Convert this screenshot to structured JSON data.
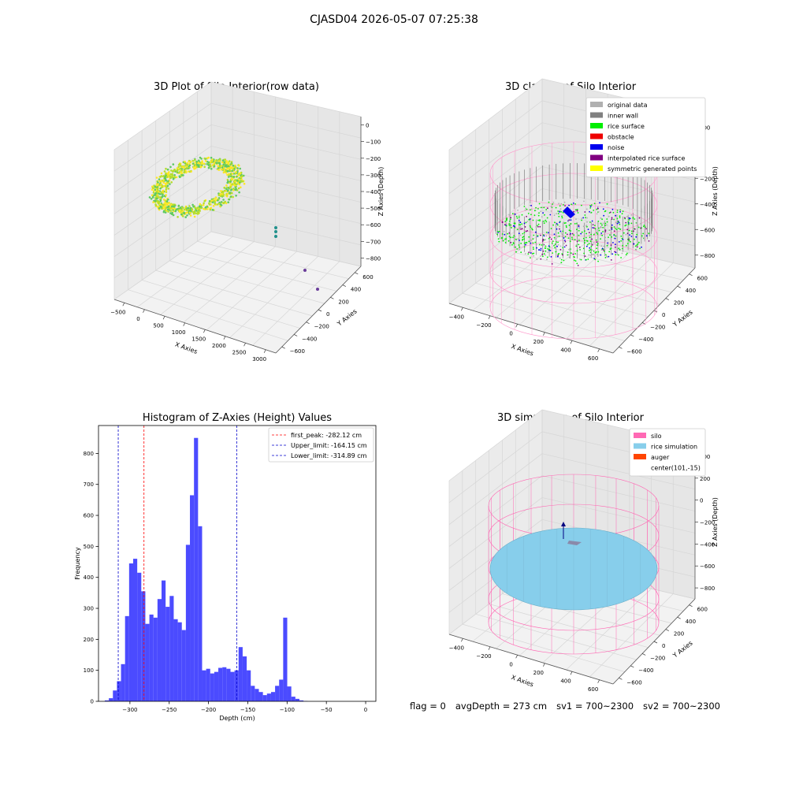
{
  "figure": {
    "suptitle": "CJASD04 2026-05-07 07:25:38",
    "status": {
      "flag": "flag = 0",
      "avg_depth": "avgDepth = 273 cm",
      "sv1": "sv1 = 700~2300",
      "sv2": "sv2 = 700~2300"
    }
  },
  "chart_data": [
    {
      "type": "scatter",
      "title": "3D Plot of Silo Interior(row data)",
      "xlabel": "X Axies",
      "ylabel": "Y Axies",
      "zlabel": "Z Axies (Depth)",
      "x_ticks": [
        "−500",
        "0",
        "500",
        "1000",
        "1500",
        "2000",
        "2500",
        "3000"
      ],
      "y_ticks": [
        "−600",
        "−400",
        "−200",
        "0",
        "200",
        "400",
        "600"
      ],
      "z_ticks": [
        "0",
        "−100",
        "−200",
        "−300",
        "−400",
        "−500",
        "−600",
        "−700",
        "−800"
      ],
      "xlim": [
        -600,
        3100
      ],
      "ylim": [
        -650,
        650
      ],
      "zlim": [
        -850,
        50
      ],
      "colormap": "viridis",
      "outliers": [
        {
          "x": 1900,
          "y": 250,
          "z": -470
        },
        {
          "x": 1900,
          "y": 250,
          "z": -510
        },
        {
          "x": 1900,
          "y": 250,
          "z": -540
        },
        {
          "x": 2700,
          "y": 0,
          "z": -780
        },
        {
          "x": 3000,
          "y": -100,
          "z": -820
        }
      ]
    },
    {
      "type": "scatter",
      "title": "3D classify of Silo Interior",
      "xlabel": "X Axies",
      "ylabel": "Y Axies",
      "zlabel": "Z Axies (Depth)",
      "x_ticks": [
        "−400",
        "−200",
        "0",
        "200",
        "400",
        "600"
      ],
      "y_ticks": [
        "−600",
        "−400",
        "−200",
        "0",
        "200",
        "400",
        "600"
      ],
      "z_ticks": [
        "200",
        "0",
        "−200",
        "−400",
        "−600",
        "−800"
      ],
      "legend_position": "top-right",
      "legend": [
        {
          "label": "original data",
          "color": "#b0b0b0"
        },
        {
          "label": "inner wall",
          "color": "#808080"
        },
        {
          "label": "rice surface",
          "color": "#00ee00"
        },
        {
          "label": "obstacle",
          "color": "#ee0000"
        },
        {
          "label": "noise",
          "color": "#0000ee"
        },
        {
          "label": "interpolated rice surface",
          "color": "#800080"
        },
        {
          "label": "symmetric generated points",
          "color": "#ffff00"
        }
      ],
      "wireframe_color": "#ff99cc"
    },
    {
      "type": "bar",
      "title": "Histogram of Z-Axies (Height) Values",
      "xlabel": "Depth (cm)",
      "ylabel": "Frequency",
      "xlim": [
        -340,
        13
      ],
      "ylim": [
        0,
        890
      ],
      "x_ticks": [
        -300,
        -250,
        -200,
        -150,
        -100,
        -50,
        0
      ],
      "y_ticks": [
        0,
        100,
        200,
        300,
        400,
        500,
        600,
        700,
        800
      ],
      "bar_color": "#4b4bff",
      "bin_width": 5.16,
      "bins_start": [
        -332.0,
        -326.84,
        -321.68,
        -316.52,
        -311.36,
        -306.2,
        -301.04,
        -295.88,
        -290.72,
        -285.56,
        -280.4,
        -275.24,
        -270.08,
        -264.92,
        -259.76,
        -254.6,
        -249.44,
        -244.28,
        -239.12,
        -233.96,
        -228.8,
        -223.64,
        -218.48,
        -213.32,
        -208.16,
        -203.0,
        -197.84,
        -192.68,
        -187.52,
        -182.36,
        -177.2,
        -172.04,
        -166.88,
        -161.72,
        -156.56,
        -151.4,
        -146.24,
        -141.08,
        -135.92,
        -130.76,
        -125.6,
        -120.44,
        -115.28,
        -110.12,
        -104.96,
        -99.8,
        -94.64,
        -89.48,
        -84.32,
        -79.16,
        -74.0,
        -68.84,
        -63.68,
        -58.52,
        -53.36,
        -48.2,
        -43.04,
        -37.88,
        -32.72,
        -27.56,
        -22.4,
        -17.24,
        -12.08,
        -6.92,
        -1.76
      ],
      "values": [
        3,
        10,
        35,
        65,
        120,
        275,
        445,
        460,
        415,
        355,
        250,
        280,
        270,
        330,
        390,
        305,
        340,
        265,
        255,
        230,
        505,
        665,
        850,
        565,
        100,
        105,
        90,
        95,
        108,
        110,
        105,
        95,
        100,
        175,
        145,
        100,
        50,
        40,
        30,
        20,
        25,
        30,
        50,
        70,
        270,
        48,
        15,
        8,
        3,
        1,
        0,
        0,
        0,
        0,
        0,
        0,
        0,
        0,
        0,
        0,
        0,
        0,
        0,
        0,
        0
      ],
      "vlines": [
        {
          "label": "first_peak: -282.12 cm",
          "x": -282.12,
          "color": "#ff0000"
        },
        {
          "label": "Upper_limit: -164.15 cm",
          "x": -164.15,
          "color": "#0000cc"
        },
        {
          "label": "Lower_limit: -314.89 cm",
          "x": -314.89,
          "color": "#0000cc"
        }
      ],
      "legend_position": "top-right"
    },
    {
      "type": "scatter",
      "title": "3D simulation of Silo Interior",
      "xlabel": "X Axies",
      "ylabel": "Y Axies",
      "zlabel": "Z Axies (Depth)",
      "x_ticks": [
        "−400",
        "−200",
        "0",
        "200",
        "400",
        "600"
      ],
      "y_ticks": [
        "−600",
        "−400",
        "−200",
        "0",
        "200",
        "400",
        "600"
      ],
      "z_ticks": [
        "400",
        "200",
        "0",
        "−200",
        "−400",
        "−600",
        "−800"
      ],
      "legend_position": "top-right",
      "legend": [
        {
          "label": "silo",
          "color": "#ff69b4"
        },
        {
          "label": "rice simulation",
          "color": "#87ceeb"
        },
        {
          "label": "auger",
          "color": "#ff4500"
        },
        {
          "label": "center(101,-15)",
          "color": ""
        }
      ]
    }
  ]
}
